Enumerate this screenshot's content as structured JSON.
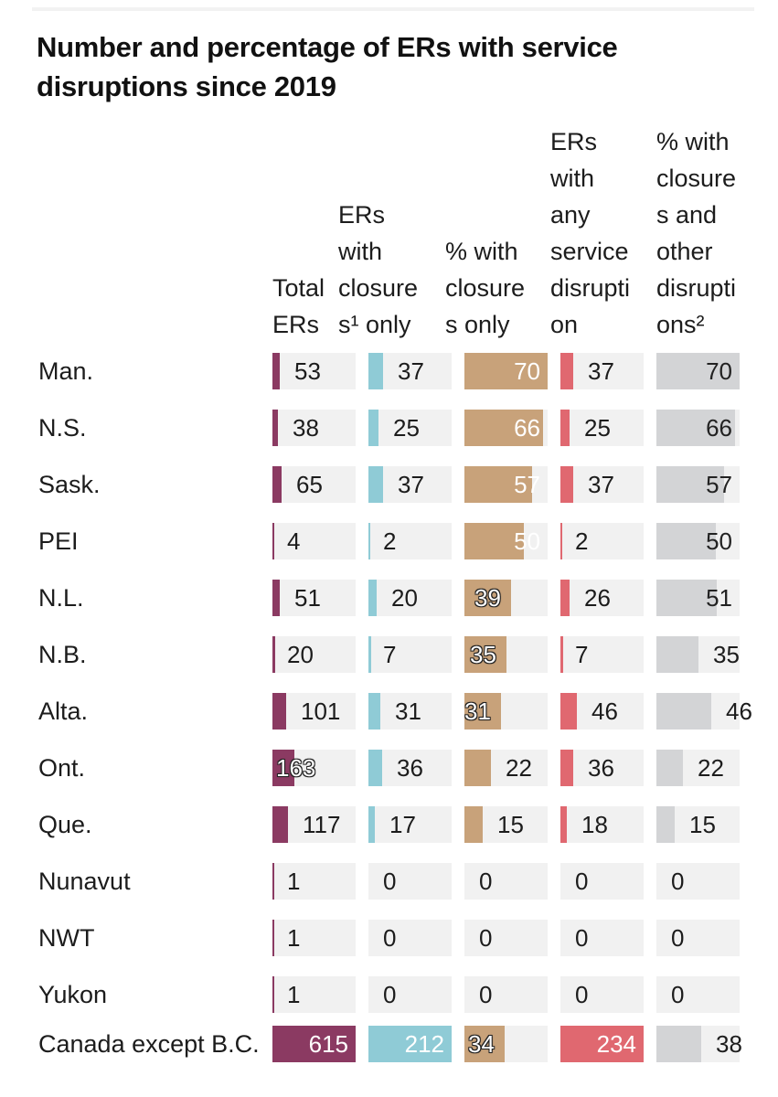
{
  "chart_data": {
    "type": "table",
    "title": "Number and percentage of ERs with service disruptions since 2019",
    "columns": [
      {
        "label": "Total ERs",
        "color": "#8b3a62",
        "max": 615
      },
      {
        "label": "ERs with closures¹ only",
        "color": "#8fcbd6",
        "max": 212
      },
      {
        "label": "% with closures only",
        "color": "#c8a27a",
        "max": 70
      },
      {
        "label": "ERs with any service disruption",
        "color": "#e06870",
        "max": 234
      },
      {
        "label": "% with closures and other disruptions²",
        "color": "#d3d4d6",
        "max": 70
      }
    ],
    "header_lines": [
      [
        "Total",
        "ERs"
      ],
      [
        "ERs",
        "with",
        "closure",
        "s¹ only"
      ],
      [
        "% with",
        "closure",
        "s only"
      ],
      [
        "ERs",
        "with",
        "any",
        "service",
        "disrupti",
        "on"
      ],
      [
        "% with",
        "closure",
        "s and",
        "other",
        "disrupti",
        "ons²"
      ]
    ],
    "rows": [
      {
        "label": "Man.",
        "values": [
          53,
          37,
          70,
          37,
          70
        ]
      },
      {
        "label": "N.S.",
        "values": [
          38,
          25,
          66,
          25,
          66
        ]
      },
      {
        "label": "Sask.",
        "values": [
          65,
          37,
          57,
          37,
          57
        ]
      },
      {
        "label": "PEI",
        "values": [
          4,
          2,
          50,
          2,
          50
        ]
      },
      {
        "label": "N.L.",
        "values": [
          51,
          20,
          39,
          26,
          51
        ]
      },
      {
        "label": "N.B.",
        "values": [
          20,
          7,
          35,
          7,
          35
        ]
      },
      {
        "label": "Alta.",
        "values": [
          101,
          31,
          31,
          46,
          46
        ]
      },
      {
        "label": "Ont.",
        "values": [
          163,
          36,
          22,
          36,
          22
        ]
      },
      {
        "label": "Que.",
        "values": [
          117,
          17,
          15,
          18,
          15
        ]
      },
      {
        "label": "Nunavut",
        "values": [
          1,
          0,
          0,
          0,
          0
        ]
      },
      {
        "label": "NWT",
        "values": [
          1,
          0,
          0,
          0,
          0
        ]
      },
      {
        "label": "Yukon",
        "values": [
          1,
          0,
          0,
          0,
          0
        ]
      }
    ],
    "total_row": {
      "label": "Canada except B.C.",
      "values": [
        615,
        212,
        34,
        234,
        38
      ]
    }
  }
}
